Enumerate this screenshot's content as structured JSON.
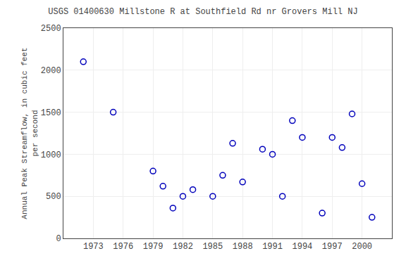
{
  "chart_data": {
    "type": "scatter",
    "title": "USGS 01400630 Millstone R at Southfield Rd nr Grovers Mill NJ",
    "ylabel": "Annual Peak Streamflow, in cubic feet\nper second",
    "x": [
      1972,
      1975,
      1979,
      1980,
      1981,
      1982,
      1983,
      1985,
      1986,
      1987,
      1988,
      1990,
      1991,
      1992,
      1993,
      1994,
      1996,
      1997,
      1998,
      1999,
      2000,
      2001
    ],
    "values": [
      2100,
      1500,
      800,
      620,
      360,
      500,
      580,
      500,
      750,
      1130,
      670,
      1060,
      1000,
      500,
      1400,
      1200,
      300,
      1200,
      1080,
      1480,
      650,
      250
    ],
    "color": "#0000bb",
    "marker": "circle-open",
    "xlim": [
      1970,
      2003
    ],
    "ylim": [
      0,
      2500
    ],
    "xticks": [
      1973,
      1976,
      1979,
      1982,
      1985,
      1988,
      1991,
      1994,
      1997,
      2000
    ],
    "yticks": [
      0,
      500,
      1000,
      1500,
      2000,
      2500
    ],
    "grid": true
  }
}
